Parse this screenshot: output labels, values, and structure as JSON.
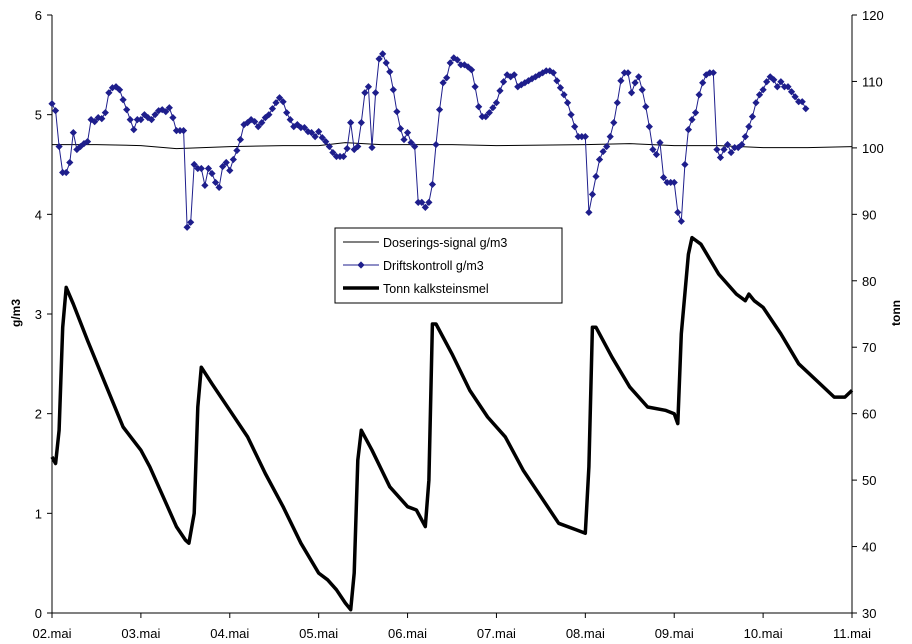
{
  "chart_data": {
    "type": "line",
    "title": "",
    "x_tick_labels": [
      "02.mai",
      "03.mai",
      "04.mai",
      "05.mai",
      "06.mai",
      "07.mai",
      "08.mai",
      "09.mai",
      "10.mai",
      "11.mai"
    ],
    "x_range_days": [
      0,
      9
    ],
    "y_left": {
      "label": "g/m3",
      "range": [
        0,
        6
      ],
      "ticks": [
        0,
        1,
        2,
        3,
        4,
        5,
        6
      ]
    },
    "y_right": {
      "label": "tonn",
      "range": [
        30,
        120
      ],
      "ticks": [
        30,
        40,
        50,
        60,
        70,
        80,
        90,
        100,
        110,
        120
      ]
    },
    "legend_position": "center",
    "grid": false,
    "series": [
      {
        "name": "Doserings-signal g/m3",
        "axis": "left",
        "color": "#000000",
        "marker": "none",
        "points": [
          [
            0,
            4.7
          ],
          [
            0.5,
            4.7
          ],
          [
            1,
            4.69
          ],
          [
            1.4,
            4.66
          ],
          [
            2,
            4.68
          ],
          [
            2.6,
            4.69
          ],
          [
            3,
            4.69
          ],
          [
            3.3,
            4.72
          ],
          [
            3.7,
            4.7
          ],
          [
            4.5,
            4.7
          ],
          [
            5,
            4.69
          ],
          [
            6,
            4.7
          ],
          [
            6.5,
            4.71
          ],
          [
            7,
            4.69
          ],
          [
            7.5,
            4.69
          ],
          [
            8,
            4.67
          ],
          [
            8.5,
            4.67
          ],
          [
            9,
            4.68
          ]
        ]
      },
      {
        "name": "Driftskontroll g/m3",
        "axis": "left",
        "color": "#1e1e8c",
        "marker": "diamond",
        "points": [
          [
            0,
            5.11
          ],
          [
            0.04,
            5.04
          ],
          [
            0.08,
            4.68
          ],
          [
            0.12,
            4.42
          ],
          [
            0.16,
            4.42
          ],
          [
            0.2,
            4.52
          ],
          [
            0.24,
            4.82
          ],
          [
            0.28,
            4.65
          ],
          [
            0.32,
            4.68
          ],
          [
            0.36,
            4.71
          ],
          [
            0.4,
            4.73
          ],
          [
            0.44,
            4.95
          ],
          [
            0.48,
            4.93
          ],
          [
            0.52,
            4.97
          ],
          [
            0.56,
            4.96
          ],
          [
            0.6,
            5.02
          ],
          [
            0.64,
            5.22
          ],
          [
            0.68,
            5.27
          ],
          [
            0.72,
            5.28
          ],
          [
            0.76,
            5.25
          ],
          [
            0.8,
            5.15
          ],
          [
            0.84,
            5.05
          ],
          [
            0.88,
            4.95
          ],
          [
            0.92,
            4.85
          ],
          [
            0.96,
            4.95
          ],
          [
            1.0,
            4.95
          ],
          [
            1.04,
            5.0
          ],
          [
            1.08,
            4.97
          ],
          [
            1.12,
            4.95
          ],
          [
            1.16,
            5.0
          ],
          [
            1.2,
            5.04
          ],
          [
            1.24,
            5.05
          ],
          [
            1.28,
            5.03
          ],
          [
            1.32,
            5.07
          ],
          [
            1.36,
            4.97
          ],
          [
            1.4,
            4.84
          ],
          [
            1.44,
            4.84
          ],
          [
            1.48,
            4.84
          ],
          [
            1.52,
            3.87
          ],
          [
            1.56,
            3.92
          ],
          [
            1.6,
            4.5
          ],
          [
            1.64,
            4.46
          ],
          [
            1.68,
            4.46
          ],
          [
            1.72,
            4.29
          ],
          [
            1.76,
            4.46
          ],
          [
            1.8,
            4.41
          ],
          [
            1.84,
            4.32
          ],
          [
            1.88,
            4.27
          ],
          [
            1.92,
            4.48
          ],
          [
            1.96,
            4.52
          ],
          [
            2.0,
            4.44
          ],
          [
            2.04,
            4.55
          ],
          [
            2.08,
            4.64
          ],
          [
            2.12,
            4.75
          ],
          [
            2.16,
            4.9
          ],
          [
            2.2,
            4.92
          ],
          [
            2.24,
            4.95
          ],
          [
            2.28,
            4.93
          ],
          [
            2.32,
            4.88
          ],
          [
            2.36,
            4.92
          ],
          [
            2.4,
            4.97
          ],
          [
            2.44,
            5.0
          ],
          [
            2.48,
            5.06
          ],
          [
            2.52,
            5.12
          ],
          [
            2.56,
            5.17
          ],
          [
            2.6,
            5.13
          ],
          [
            2.64,
            5.02
          ],
          [
            2.68,
            4.95
          ],
          [
            2.72,
            4.88
          ],
          [
            2.76,
            4.9
          ],
          [
            2.8,
            4.87
          ],
          [
            2.84,
            4.87
          ],
          [
            2.88,
            4.83
          ],
          [
            2.92,
            4.82
          ],
          [
            2.96,
            4.78
          ],
          [
            3.0,
            4.83
          ],
          [
            3.04,
            4.77
          ],
          [
            3.08,
            4.73
          ],
          [
            3.12,
            4.68
          ],
          [
            3.16,
            4.62
          ],
          [
            3.2,
            4.58
          ],
          [
            3.24,
            4.58
          ],
          [
            3.28,
            4.58
          ],
          [
            3.32,
            4.66
          ],
          [
            3.36,
            4.92
          ],
          [
            3.4,
            4.65
          ],
          [
            3.44,
            4.68
          ],
          [
            3.48,
            4.92
          ],
          [
            3.52,
            5.22
          ],
          [
            3.56,
            5.28
          ],
          [
            3.6,
            4.67
          ],
          [
            3.64,
            5.22
          ],
          [
            3.68,
            5.56
          ],
          [
            3.72,
            5.61
          ],
          [
            3.76,
            5.52
          ],
          [
            3.8,
            5.43
          ],
          [
            3.84,
            5.25
          ],
          [
            3.88,
            5.03
          ],
          [
            3.92,
            4.86
          ],
          [
            3.96,
            4.75
          ],
          [
            4.0,
            4.82
          ],
          [
            4.04,
            4.72
          ],
          [
            4.08,
            4.68
          ],
          [
            4.12,
            4.12
          ],
          [
            4.16,
            4.12
          ],
          [
            4.2,
            4.07
          ],
          [
            4.24,
            4.12
          ],
          [
            4.28,
            4.3
          ],
          [
            4.32,
            4.7
          ],
          [
            4.36,
            5.05
          ],
          [
            4.4,
            5.32
          ],
          [
            4.44,
            5.37
          ],
          [
            4.48,
            5.52
          ],
          [
            4.52,
            5.57
          ],
          [
            4.56,
            5.55
          ],
          [
            4.6,
            5.5
          ],
          [
            4.64,
            5.5
          ],
          [
            4.68,
            5.48
          ],
          [
            4.72,
            5.45
          ],
          [
            4.76,
            5.28
          ],
          [
            4.8,
            5.08
          ],
          [
            4.84,
            4.98
          ],
          [
            4.88,
            4.98
          ],
          [
            4.92,
            5.02
          ],
          [
            4.96,
            5.07
          ],
          [
            5.0,
            5.12
          ],
          [
            5.04,
            5.24
          ],
          [
            5.08,
            5.33
          ],
          [
            5.12,
            5.4
          ],
          [
            5.16,
            5.38
          ],
          [
            5.2,
            5.4
          ],
          [
            5.24,
            5.28
          ],
          [
            5.28,
            5.3
          ],
          [
            5.32,
            5.32
          ],
          [
            5.36,
            5.34
          ],
          [
            5.4,
            5.36
          ],
          [
            5.44,
            5.38
          ],
          [
            5.48,
            5.4
          ],
          [
            5.52,
            5.42
          ],
          [
            5.56,
            5.44
          ],
          [
            5.6,
            5.44
          ],
          [
            5.64,
            5.42
          ],
          [
            5.68,
            5.34
          ],
          [
            5.72,
            5.27
          ],
          [
            5.76,
            5.2
          ],
          [
            5.8,
            5.12
          ],
          [
            5.84,
            5.0
          ],
          [
            5.88,
            4.88
          ],
          [
            5.92,
            4.78
          ],
          [
            5.96,
            4.78
          ],
          [
            6.0,
            4.78
          ],
          [
            6.04,
            4.02
          ],
          [
            6.08,
            4.2
          ],
          [
            6.12,
            4.38
          ],
          [
            6.16,
            4.55
          ],
          [
            6.2,
            4.63
          ],
          [
            6.24,
            4.68
          ],
          [
            6.28,
            4.78
          ],
          [
            6.32,
            4.92
          ],
          [
            6.36,
            5.12
          ],
          [
            6.4,
            5.34
          ],
          [
            6.44,
            5.42
          ],
          [
            6.48,
            5.42
          ],
          [
            6.52,
            5.22
          ],
          [
            6.56,
            5.32
          ],
          [
            6.6,
            5.38
          ],
          [
            6.64,
            5.25
          ],
          [
            6.68,
            5.08
          ],
          [
            6.72,
            4.88
          ],
          [
            6.76,
            4.65
          ],
          [
            6.8,
            4.6
          ],
          [
            6.84,
            4.72
          ],
          [
            6.88,
            4.37
          ],
          [
            6.92,
            4.32
          ],
          [
            6.96,
            4.32
          ],
          [
            7.0,
            4.32
          ],
          [
            7.04,
            4.02
          ],
          [
            7.08,
            3.93
          ],
          [
            7.12,
            4.5
          ],
          [
            7.16,
            4.85
          ],
          [
            7.2,
            4.95
          ],
          [
            7.24,
            5.02
          ],
          [
            7.28,
            5.2
          ],
          [
            7.32,
            5.32
          ],
          [
            7.36,
            5.4
          ],
          [
            7.4,
            5.42
          ],
          [
            7.44,
            5.42
          ],
          [
            7.48,
            4.65
          ],
          [
            7.52,
            4.57
          ],
          [
            7.56,
            4.65
          ],
          [
            7.6,
            4.7
          ],
          [
            7.64,
            4.62
          ],
          [
            7.68,
            4.67
          ],
          [
            7.72,
            4.67
          ],
          [
            7.76,
            4.7
          ],
          [
            7.8,
            4.78
          ],
          [
            7.84,
            4.88
          ],
          [
            7.88,
            4.98
          ],
          [
            7.92,
            5.12
          ],
          [
            7.96,
            5.2
          ],
          [
            8.0,
            5.25
          ],
          [
            8.04,
            5.33
          ],
          [
            8.08,
            5.38
          ],
          [
            8.12,
            5.35
          ],
          [
            8.16,
            5.28
          ],
          [
            8.2,
            5.33
          ],
          [
            8.24,
            5.28
          ],
          [
            8.28,
            5.28
          ],
          [
            8.32,
            5.23
          ],
          [
            8.36,
            5.18
          ],
          [
            8.4,
            5.13
          ],
          [
            8.44,
            5.13
          ],
          [
            8.48,
            5.06
          ]
        ]
      },
      {
        "name": "Tonn kalksteinsmel",
        "axis": "right",
        "color": "#000000",
        "marker": "none",
        "points": [
          [
            0,
            53.5
          ],
          [
            0.04,
            52.5
          ],
          [
            0.08,
            57.5
          ],
          [
            0.12,
            73.0
          ],
          [
            0.16,
            79.0
          ],
          [
            0.24,
            76.5
          ],
          [
            0.4,
            71.0
          ],
          [
            0.6,
            64.5
          ],
          [
            0.8,
            58.0
          ],
          [
            1.0,
            54.5
          ],
          [
            1.1,
            52.0
          ],
          [
            1.3,
            46.0
          ],
          [
            1.4,
            43.0
          ],
          [
            1.5,
            41.0
          ],
          [
            1.54,
            40.5
          ],
          [
            1.6,
            45.0
          ],
          [
            1.64,
            61.0
          ],
          [
            1.68,
            67.0
          ],
          [
            1.8,
            64.5
          ],
          [
            2.0,
            60.5
          ],
          [
            2.2,
            56.5
          ],
          [
            2.4,
            51.0
          ],
          [
            2.6,
            46.0
          ],
          [
            2.8,
            40.5
          ],
          [
            3.0,
            36.0
          ],
          [
            3.1,
            35.0
          ],
          [
            3.2,
            33.5
          ],
          [
            3.3,
            31.5
          ],
          [
            3.36,
            30.5
          ],
          [
            3.4,
            36.0
          ],
          [
            3.44,
            53.0
          ],
          [
            3.48,
            57.5
          ],
          [
            3.6,
            54.5
          ],
          [
            3.8,
            49.0
          ],
          [
            4.0,
            46.0
          ],
          [
            4.1,
            45.5
          ],
          [
            4.2,
            43.0
          ],
          [
            4.24,
            50.0
          ],
          [
            4.28,
            73.5
          ],
          [
            4.32,
            73.5
          ],
          [
            4.5,
            69.0
          ],
          [
            4.7,
            63.5
          ],
          [
            4.9,
            59.5
          ],
          [
            5.1,
            56.5
          ],
          [
            5.3,
            51.5
          ],
          [
            5.5,
            47.5
          ],
          [
            5.7,
            43.5
          ],
          [
            5.9,
            42.5
          ],
          [
            6.0,
            42.0
          ],
          [
            6.04,
            52.0
          ],
          [
            6.08,
            73.0
          ],
          [
            6.12,
            73.0
          ],
          [
            6.3,
            68.5
          ],
          [
            6.5,
            64.0
          ],
          [
            6.7,
            61.0
          ],
          [
            6.9,
            60.5
          ],
          [
            7.0,
            60.0
          ],
          [
            7.04,
            58.5
          ],
          [
            7.08,
            72.0
          ],
          [
            7.16,
            84.0
          ],
          [
            7.2,
            86.5
          ],
          [
            7.3,
            85.5
          ],
          [
            7.5,
            81.0
          ],
          [
            7.7,
            78.0
          ],
          [
            7.8,
            77.0
          ],
          [
            7.84,
            78.0
          ],
          [
            7.9,
            77.0
          ],
          [
            8.0,
            76.0
          ],
          [
            8.2,
            72.0
          ],
          [
            8.4,
            67.5
          ],
          [
            8.6,
            65.0
          ],
          [
            8.8,
            62.5
          ],
          [
            8.92,
            62.5
          ],
          [
            9.0,
            63.5
          ]
        ]
      }
    ]
  }
}
